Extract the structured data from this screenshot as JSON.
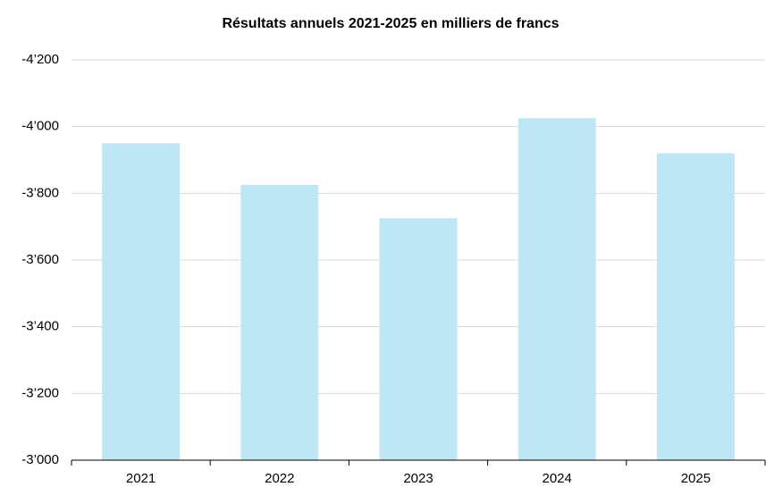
{
  "chart_data": {
    "type": "bar",
    "title": "Résultats annuels 2021-2025 en milliers de francs",
    "categories": [
      "2021",
      "2022",
      "2023",
      "2024",
      "2025"
    ],
    "values": [
      -3950,
      -3825,
      -3725,
      -4025,
      -3920
    ],
    "color": "#bfe6f5",
    "ylim": [
      -3000,
      -4200
    ],
    "yticks": [
      {
        "value": -3000,
        "label": "-3’000"
      },
      {
        "value": -3200,
        "label": "-3’200"
      },
      {
        "value": -3400,
        "label": "-3’400"
      },
      {
        "value": -3600,
        "label": "-3’600"
      },
      {
        "value": -3800,
        "label": "-3’800"
      },
      {
        "value": -4000,
        "label": "-4’000"
      },
      {
        "value": -4200,
        "label": "-4’200"
      }
    ],
    "grid": true
  }
}
